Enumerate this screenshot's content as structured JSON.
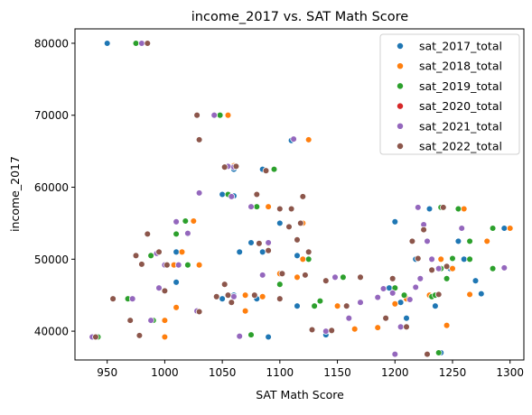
{
  "chart_data": {
    "type": "scatter",
    "title": "income_2017 vs. SAT Math Score",
    "xlabel": "SAT Math Score",
    "ylabel": "income_2017",
    "xlim": [
      922,
      1312
    ],
    "ylim": [
      36000,
      82000
    ],
    "xticks": [
      950,
      1000,
      1050,
      1100,
      1150,
      1200,
      1250,
      1300
    ],
    "yticks": [
      40000,
      50000,
      60000,
      70000,
      80000
    ],
    "legend_position": "top-right",
    "grid": false,
    "series": [
      {
        "name": "sat_2017_total",
        "color": "#1f77b4",
        "points": [
          [
            950,
            80000
          ],
          [
            1060,
            62500
          ],
          [
            1110,
            66500
          ],
          [
            1075,
            52300
          ],
          [
            1060,
            45000
          ],
          [
            1065,
            51000
          ],
          [
            1085,
            51000
          ],
          [
            1100,
            55000
          ],
          [
            1115,
            50500
          ],
          [
            1200,
            55200
          ],
          [
            1230,
            57000
          ],
          [
            1255,
            52500
          ],
          [
            1295,
            54300
          ],
          [
            1210,
            41800
          ],
          [
            1250,
            48800
          ],
          [
            1270,
            47000
          ],
          [
            1240,
            37000
          ],
          [
            1235,
            43500
          ],
          [
            1275,
            45200
          ],
          [
            1090,
            39200
          ],
          [
            1140,
            39500
          ],
          [
            1150,
            43500
          ],
          [
            1195,
            46000
          ],
          [
            1050,
            44500
          ],
          [
            1080,
            44500
          ],
          [
            1010,
            46800
          ],
          [
            1060,
            58800
          ],
          [
            1085,
            62500
          ],
          [
            1020,
            53500
          ],
          [
            1115,
            47500
          ],
          [
            1170,
            44000
          ],
          [
            1205,
            44000
          ],
          [
            1218,
            50000
          ],
          [
            1115,
            43500
          ],
          [
            1248,
            48700
          ],
          [
            1260,
            50000
          ],
          [
            1010,
            51000
          ],
          [
            1050,
            59000
          ]
        ]
      },
      {
        "name": "sat_2018_total",
        "color": "#ff7f0e",
        "points": [
          [
            985,
            80000
          ],
          [
            1055,
            70000
          ],
          [
            1125,
            66600
          ],
          [
            1095,
            62500
          ],
          [
            1060,
            63000
          ],
          [
            1080,
            59000
          ],
          [
            1090,
            57300
          ],
          [
            1120,
            55000
          ],
          [
            1025,
            55300
          ],
          [
            1020,
            53600
          ],
          [
            1015,
            51000
          ],
          [
            1008,
            49200
          ],
          [
            1030,
            49200
          ],
          [
            1090,
            52200
          ],
          [
            1120,
            50000
          ],
          [
            1100,
            48000
          ],
          [
            1000,
            41500
          ],
          [
            1000,
            39200
          ],
          [
            1010,
            43300
          ],
          [
            1070,
            42800
          ],
          [
            1070,
            45000
          ],
          [
            1085,
            44800
          ],
          [
            1115,
            47500
          ],
          [
            1150,
            43500
          ],
          [
            1165,
            40300
          ],
          [
            1170,
            44000
          ],
          [
            1185,
            40500
          ],
          [
            1230,
            45000
          ],
          [
            1245,
            40800
          ],
          [
            1240,
            50000
          ],
          [
            1250,
            48700
          ],
          [
            1260,
            57000
          ],
          [
            1265,
            45100
          ],
          [
            1280,
            52500
          ],
          [
            1300,
            54300
          ],
          [
            1295,
            48800
          ],
          [
            1200,
            43800
          ],
          [
            1210,
            44500
          ]
        ]
      },
      {
        "name": "sat_2019_total",
        "color": "#2ca02c",
        "points": [
          [
            942,
            39200
          ],
          [
            968,
            44500
          ],
          [
            990,
            41500
          ],
          [
            988,
            50500
          ],
          [
            975,
            80000
          ],
          [
            1048,
            70000
          ],
          [
            1095,
            62500
          ],
          [
            1055,
            59000
          ],
          [
            1080,
            57300
          ],
          [
            1020,
            49200
          ],
          [
            1010,
            53500
          ],
          [
            1018,
            55300
          ],
          [
            1100,
            46500
          ],
          [
            1045,
            44800
          ],
          [
            1075,
            39500
          ],
          [
            1125,
            50000
          ],
          [
            1130,
            43500
          ],
          [
            1135,
            44200
          ],
          [
            1145,
            40000
          ],
          [
            1155,
            47500
          ],
          [
            1200,
            46000
          ],
          [
            1208,
            45000
          ],
          [
            1232,
            44800
          ],
          [
            1238,
            37000
          ],
          [
            1240,
            48700
          ],
          [
            1245,
            47300
          ],
          [
            1250,
            50100
          ],
          [
            1255,
            57000
          ],
          [
            1265,
            50000
          ],
          [
            1265,
            52500
          ],
          [
            1285,
            54300
          ],
          [
            1285,
            48700
          ],
          [
            1240,
            57200
          ],
          [
            1235,
            45000
          ]
        ]
      },
      {
        "name": "sat_2020_total",
        "color": "#d62728",
        "points": []
      },
      {
        "name": "sat_2021_total",
        "color": "#9467bd",
        "points": [
          [
            937,
            39200
          ],
          [
            972,
            44500
          ],
          [
            988,
            41500
          ],
          [
            995,
            46000
          ],
          [
            1000,
            45600
          ],
          [
            993,
            50800
          ],
          [
            1000,
            49200
          ],
          [
            980,
            80000
          ],
          [
            1043,
            70000
          ],
          [
            1112,
            66700
          ],
          [
            1060,
            62800
          ],
          [
            1058,
            58700
          ],
          [
            1075,
            57300
          ],
          [
            1090,
            52300
          ],
          [
            1085,
            47800
          ],
          [
            1060,
            44800
          ],
          [
            1065,
            39300
          ],
          [
            1010,
            55200
          ],
          [
            1020,
            53600
          ],
          [
            1030,
            59200
          ],
          [
            1028,
            42800
          ],
          [
            1140,
            40000
          ],
          [
            1148,
            47500
          ],
          [
            1160,
            41800
          ],
          [
            1185,
            44700
          ],
          [
            1190,
            45900
          ],
          [
            1198,
            45300
          ],
          [
            1200,
            36800
          ],
          [
            1205,
            40600
          ],
          [
            1213,
            44400
          ],
          [
            1218,
            46100
          ],
          [
            1222,
            47300
          ],
          [
            1225,
            54800
          ],
          [
            1228,
            52500
          ],
          [
            1232,
            50000
          ],
          [
            1220,
            57200
          ],
          [
            1238,
            48700
          ],
          [
            1258,
            54300
          ],
          [
            1295,
            48800
          ],
          [
            1170,
            44000
          ],
          [
            1055,
            62900
          ],
          [
            1012,
            49200
          ]
        ]
      },
      {
        "name": "sat_2022_total",
        "color": "#8c564b",
        "points": [
          [
            940,
            39200
          ],
          [
            955,
            44500
          ],
          [
            970,
            41500
          ],
          [
            975,
            50500
          ],
          [
            978,
            39400
          ],
          [
            980,
            49300
          ],
          [
            985,
            53500
          ],
          [
            995,
            51000
          ],
          [
            1002,
            49200
          ],
          [
            985,
            80000
          ],
          [
            1028,
            70000
          ],
          [
            1030,
            66600
          ],
          [
            1052,
            62800
          ],
          [
            1062,
            62900
          ],
          [
            1088,
            62300
          ],
          [
            1080,
            59000
          ],
          [
            1082,
            52200
          ],
          [
            1100,
            57000
          ],
          [
            1108,
            54500
          ],
          [
            1110,
            57000
          ],
          [
            1118,
            55000
          ],
          [
            1120,
            58700
          ],
          [
            1125,
            51000
          ],
          [
            1122,
            47800
          ],
          [
            1102,
            48000
          ],
          [
            1100,
            44500
          ],
          [
            1052,
            46500
          ],
          [
            1055,
            45000
          ],
          [
            1058,
            44000
          ],
          [
            1078,
            45000
          ],
          [
            1030,
            42700
          ],
          [
            1000,
            45600
          ],
          [
            1128,
            40200
          ],
          [
            1140,
            47000
          ],
          [
            1145,
            40100
          ],
          [
            1158,
            43500
          ],
          [
            1170,
            47500
          ],
          [
            1192,
            41800
          ],
          [
            1198,
            47300
          ],
          [
            1210,
            40600
          ],
          [
            1215,
            52500
          ],
          [
            1220,
            50100
          ],
          [
            1225,
            54100
          ],
          [
            1228,
            36800
          ],
          [
            1232,
            48500
          ],
          [
            1238,
            45100
          ],
          [
            1242,
            57200
          ],
          [
            1245,
            49000
          ],
          [
            1045,
            44800
          ],
          [
            1090,
            51200
          ],
          [
            1115,
            52700
          ]
        ]
      }
    ]
  }
}
